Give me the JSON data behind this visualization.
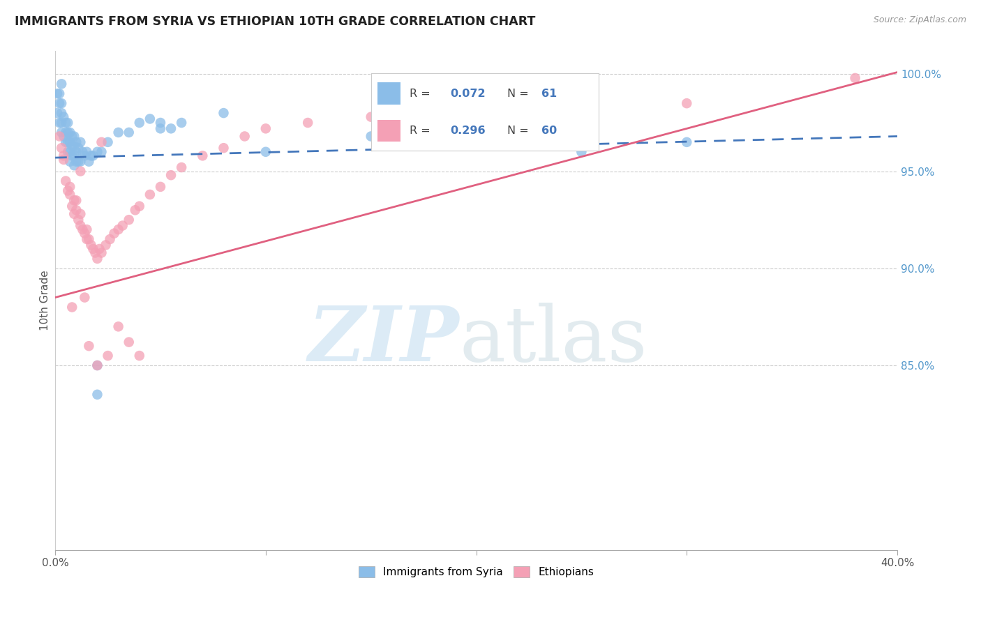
{
  "title": "IMMIGRANTS FROM SYRIA VS ETHIOPIAN 10TH GRADE CORRELATION CHART",
  "source": "Source: ZipAtlas.com",
  "ylabel": "10th Grade",
  "right_yticks": [
    "85.0%",
    "90.0%",
    "95.0%",
    "100.0%"
  ],
  "right_ytick_vals": [
    0.85,
    0.9,
    0.95,
    1.0
  ],
  "syria_color": "#8BBDE8",
  "ethiopia_color": "#F4A0B5",
  "syria_line_color": "#4477BB",
  "ethiopia_line_color": "#E06080",
  "syria_r": 0.072,
  "syria_n": 61,
  "ethiopia_r": 0.296,
  "ethiopia_n": 60,
  "xlim": [
    0.0,
    0.4
  ],
  "ylim": [
    0.755,
    1.012
  ],
  "xtick_positions": [
    0.0,
    0.1,
    0.2,
    0.3,
    0.4
  ],
  "xtick_labels": [
    "0.0%",
    "",
    "",
    "",
    "40.0%"
  ],
  "gridline_y": [
    0.85,
    0.9,
    0.95,
    1.0
  ],
  "syria_scatter_x": [
    0.001,
    0.001,
    0.002,
    0.002,
    0.002,
    0.003,
    0.003,
    0.003,
    0.003,
    0.003,
    0.004,
    0.004,
    0.005,
    0.005,
    0.005,
    0.006,
    0.006,
    0.006,
    0.006,
    0.007,
    0.007,
    0.007,
    0.007,
    0.008,
    0.008,
    0.008,
    0.009,
    0.009,
    0.009,
    0.009,
    0.01,
    0.01,
    0.01,
    0.011,
    0.011,
    0.012,
    0.012,
    0.013,
    0.014,
    0.015,
    0.016,
    0.017,
    0.018,
    0.02,
    0.022,
    0.025,
    0.03,
    0.035,
    0.04,
    0.05,
    0.06,
    0.02,
    0.15,
    0.25,
    0.3,
    0.02,
    0.05,
    0.08,
    0.1,
    0.045,
    0.055
  ],
  "syria_scatter_y": [
    0.98,
    0.99,
    0.975,
    0.985,
    0.99,
    0.97,
    0.975,
    0.98,
    0.985,
    0.995,
    0.968,
    0.978,
    0.965,
    0.97,
    0.975,
    0.96,
    0.965,
    0.97,
    0.975,
    0.96,
    0.965,
    0.97,
    0.955,
    0.958,
    0.963,
    0.968,
    0.953,
    0.958,
    0.963,
    0.968,
    0.955,
    0.96,
    0.965,
    0.955,
    0.962,
    0.955,
    0.965,
    0.96,
    0.958,
    0.96,
    0.955,
    0.958,
    0.958,
    0.96,
    0.96,
    0.965,
    0.97,
    0.97,
    0.975,
    0.972,
    0.975,
    0.85,
    0.968,
    0.96,
    0.965,
    0.835,
    0.975,
    0.98,
    0.96,
    0.977,
    0.972
  ],
  "ethiopia_scatter_x": [
    0.002,
    0.003,
    0.004,
    0.004,
    0.005,
    0.006,
    0.007,
    0.007,
    0.008,
    0.009,
    0.009,
    0.01,
    0.01,
    0.011,
    0.012,
    0.012,
    0.013,
    0.014,
    0.015,
    0.015,
    0.016,
    0.017,
    0.018,
    0.019,
    0.02,
    0.021,
    0.022,
    0.024,
    0.026,
    0.028,
    0.03,
    0.032,
    0.035,
    0.038,
    0.04,
    0.045,
    0.05,
    0.055,
    0.06,
    0.07,
    0.08,
    0.09,
    0.1,
    0.12,
    0.15,
    0.18,
    0.2,
    0.25,
    0.3,
    0.38,
    0.012,
    0.016,
    0.02,
    0.025,
    0.03,
    0.035,
    0.008,
    0.014,
    0.022,
    0.04
  ],
  "ethiopia_scatter_y": [
    0.968,
    0.962,
    0.956,
    0.958,
    0.945,
    0.94,
    0.938,
    0.942,
    0.932,
    0.928,
    0.935,
    0.93,
    0.935,
    0.925,
    0.922,
    0.928,
    0.92,
    0.918,
    0.915,
    0.92,
    0.915,
    0.912,
    0.91,
    0.908,
    0.905,
    0.91,
    0.908,
    0.912,
    0.915,
    0.918,
    0.92,
    0.922,
    0.925,
    0.93,
    0.932,
    0.938,
    0.942,
    0.948,
    0.952,
    0.958,
    0.962,
    0.968,
    0.972,
    0.975,
    0.978,
    0.982,
    0.985,
    0.99,
    0.985,
    0.998,
    0.95,
    0.86,
    0.85,
    0.855,
    0.87,
    0.862,
    0.88,
    0.885,
    0.965,
    0.855
  ]
}
